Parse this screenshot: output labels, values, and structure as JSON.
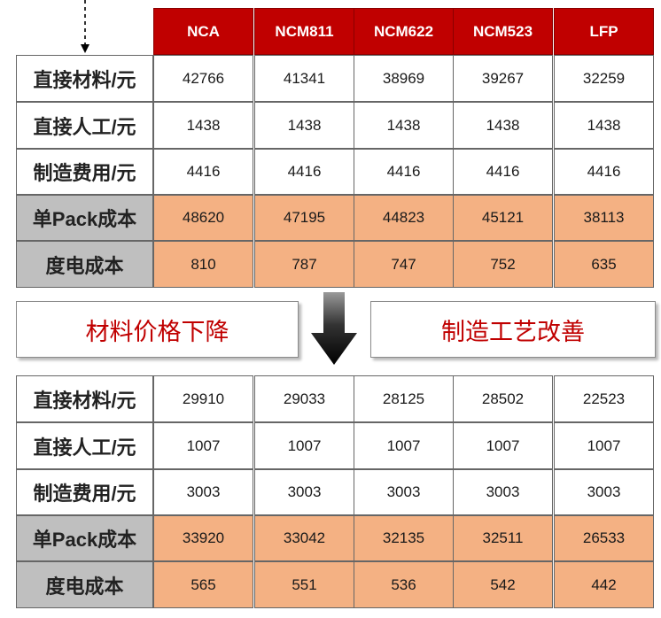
{
  "chart_data": {
    "type": "table",
    "columns": [
      "NCA",
      "NCM811",
      "NCM622",
      "NCM523",
      "LFP"
    ],
    "tables": [
      {
        "rows": [
          {
            "label": "直接材料/元",
            "values": [
              42766,
              41341,
              38969,
              39267,
              32259
            ]
          },
          {
            "label": "直接人工/元",
            "values": [
              1438,
              1438,
              1438,
              1438,
              1438
            ]
          },
          {
            "label": "制造费用/元",
            "values": [
              4416,
              4416,
              4416,
              4416,
              4416
            ]
          },
          {
            "label": "单Pack成本",
            "values": [
              48620,
              47195,
              44823,
              45121,
              38113
            ]
          },
          {
            "label": "度电成本",
            "values": [
              810,
              787,
              747,
              752,
              635
            ]
          }
        ]
      },
      {
        "rows": [
          {
            "label": "直接材料/元",
            "values": [
              29910,
              29033,
              28125,
              28502,
              22523
            ]
          },
          {
            "label": "直接人工/元",
            "values": [
              1007,
              1007,
              1007,
              1007,
              1007
            ]
          },
          {
            "label": "制造费用/元",
            "values": [
              3003,
              3003,
              3003,
              3003,
              3003
            ]
          },
          {
            "label": "单Pack成本",
            "values": [
              33920,
              33042,
              32135,
              32511,
              26533
            ]
          },
          {
            "label": "度电成本",
            "values": [
              565,
              551,
              536,
              542,
              442
            ]
          }
        ]
      }
    ],
    "highlighted_rows": [
      "单Pack成本",
      "度电成本"
    ],
    "annotations": [
      "材料价格下降",
      "制造工艺改善"
    ]
  },
  "colors": {
    "header_bg": "#c00000",
    "highlight_value_bg": "#f4b183",
    "highlight_label_bg": "#bfbfbf",
    "annotation_text": "#c00000"
  },
  "icons": [
    "dashed-down-arrow-icon",
    "down-arrow-icon"
  ]
}
